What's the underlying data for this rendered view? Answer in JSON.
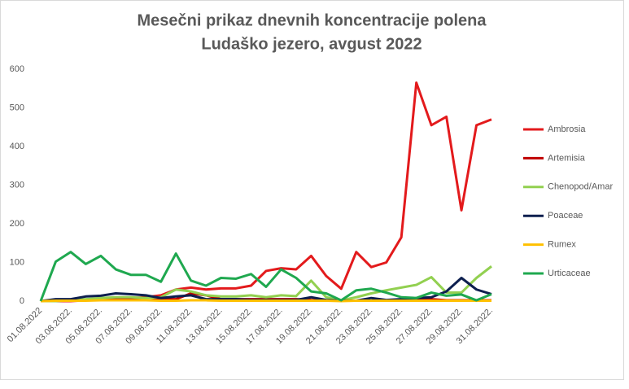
{
  "chart_data": {
    "type": "line",
    "title": "Mesečni prikaz dnevnih koncentracije polena",
    "subtitle": "Ludaško jezero, avgust 2022",
    "categories": [
      "01.08.2022",
      null,
      "03.08.2022.",
      null,
      "05.08.2022.",
      null,
      "07.08.2022.",
      null,
      "09.08.2022.",
      null,
      "11.08.2022.",
      null,
      "13.08.2022.",
      null,
      "15.08.2022.",
      null,
      "17.08.2022.",
      null,
      "19.08.2022.",
      null,
      "21.08.2022.",
      null,
      "23.08.2022.",
      null,
      "25.08.2022.",
      null,
      "27.08.2022.",
      null,
      "29.08.2022.",
      null,
      "31.08.2022."
    ],
    "series": [
      {
        "name": "Ambrosia",
        "color": "#e31a1c",
        "values": [
          0,
          0,
          0,
          2,
          3,
          5,
          8,
          10,
          15,
          30,
          35,
          30,
          33,
          33,
          40,
          78,
          85,
          82,
          117,
          65,
          32,
          127,
          88,
          100,
          165,
          565,
          455,
          477,
          235,
          455,
          470
        ]
      },
      {
        "name": "Artemisia",
        "color": "#c00000",
        "values": [
          0,
          0,
          2,
          2,
          3,
          5,
          5,
          10,
          5,
          5,
          20,
          15,
          5,
          5,
          5,
          5,
          5,
          5,
          3,
          2,
          1,
          1,
          1,
          2,
          2,
          2,
          5,
          2,
          2,
          2,
          2
        ]
      },
      {
        "name": "Chenopod/Amar",
        "color": "#92d050",
        "values": [
          0,
          0,
          2,
          5,
          8,
          10,
          10,
          8,
          10,
          30,
          25,
          15,
          12,
          12,
          15,
          10,
          15,
          13,
          53,
          10,
          2,
          10,
          20,
          28,
          35,
          42,
          62,
          22,
          22,
          60,
          90
        ]
      },
      {
        "name": "Poaceae",
        "color": "#0d1f4f",
        "values": [
          0,
          5,
          5,
          12,
          14,
          20,
          18,
          15,
          8,
          12,
          15,
          5,
          5,
          5,
          3,
          3,
          3,
          3,
          10,
          3,
          1,
          1,
          8,
          3,
          5,
          8,
          10,
          25,
          60,
          30,
          18
        ]
      },
      {
        "name": "Rumex",
        "color": "#ffc000",
        "values": [
          0,
          1,
          1,
          1,
          2,
          2,
          2,
          2,
          1,
          1,
          2,
          2,
          1,
          1,
          1,
          1,
          1,
          1,
          1,
          1,
          0,
          1,
          1,
          1,
          1,
          1,
          1,
          1,
          1,
          1,
          1
        ]
      },
      {
        "name": "Urticaceae",
        "color": "#1fa84f",
        "values": [
          0,
          102,
          127,
          96,
          117,
          82,
          68,
          68,
          50,
          123,
          53,
          40,
          60,
          58,
          70,
          37,
          82,
          60,
          25,
          20,
          2,
          28,
          32,
          22,
          10,
          8,
          22,
          14,
          17,
          2,
          18
        ]
      }
    ],
    "ylim": [
      0,
      600
    ],
    "yticks": [
      0,
      100,
      200,
      300,
      400,
      500,
      600
    ],
    "legend": "right"
  }
}
